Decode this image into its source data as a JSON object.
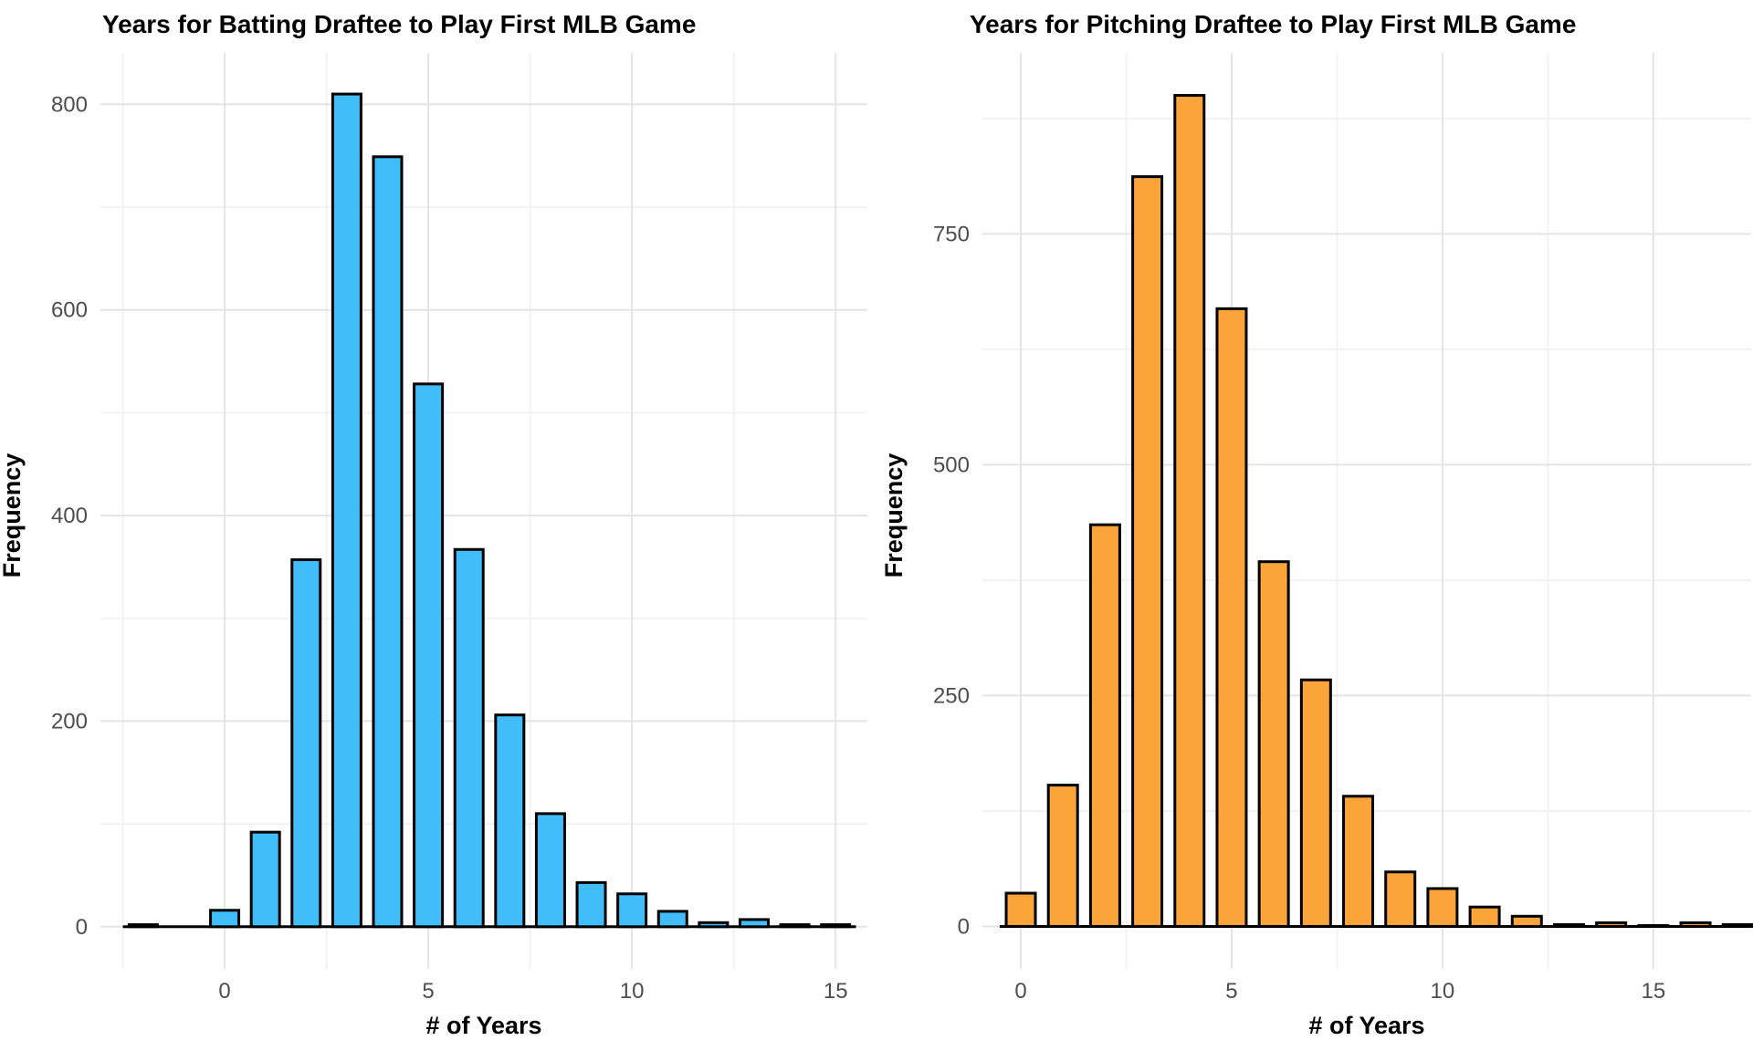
{
  "page": {
    "background": "#ffffff",
    "grid_major_color": "#e4e4e4",
    "grid_minor_color": "#f1f1f1",
    "tick_label_color": "#4d4d4d",
    "baseline_color": "#000000"
  },
  "chart_data": [
    {
      "type": "bar",
      "title": "Years for Batting Draftee to Play First MLB Game",
      "xlabel": "# of Years",
      "ylabel": "Frequency",
      "bar_color": "#41befa",
      "bar_edge_color": "#000000",
      "x": [
        -2,
        -1,
        0,
        1,
        2,
        3,
        4,
        5,
        6,
        7,
        8,
        9,
        10,
        11,
        12,
        13,
        14,
        15
      ],
      "values": [
        2,
        0,
        16,
        92,
        357,
        810,
        749,
        528,
        367,
        206,
        110,
        43,
        32,
        15,
        4,
        7,
        2,
        2
      ],
      "xticks": [
        0,
        5,
        10,
        15
      ],
      "yticks": [
        0,
        200,
        400,
        600,
        800
      ],
      "xlim": [
        -3.05,
        15.78
      ],
      "ylim": [
        -41,
        850
      ],
      "grid": true,
      "legend": null
    },
    {
      "type": "bar",
      "title": "Years for Pitching Draftee to Play First MLB Game",
      "xlabel": "# of Years",
      "ylabel": "Frequency",
      "bar_color": "#faa43a",
      "bar_edge_color": "#000000",
      "x": [
        0,
        1,
        2,
        3,
        4,
        5,
        6,
        7,
        8,
        9,
        10,
        11,
        12,
        13,
        14,
        15,
        16,
        17
      ],
      "values": [
        36,
        153,
        435,
        812,
        900,
        669,
        395,
        267,
        141,
        59,
        41,
        21,
        11,
        2,
        4,
        1,
        4,
        2
      ],
      "xticks": [
        0,
        5,
        10,
        15
      ],
      "yticks": [
        0,
        250,
        500,
        750
      ],
      "xlim": [
        -0.91,
        17.32
      ],
      "ylim": [
        -46,
        946
      ],
      "grid": true,
      "legend": null
    }
  ]
}
